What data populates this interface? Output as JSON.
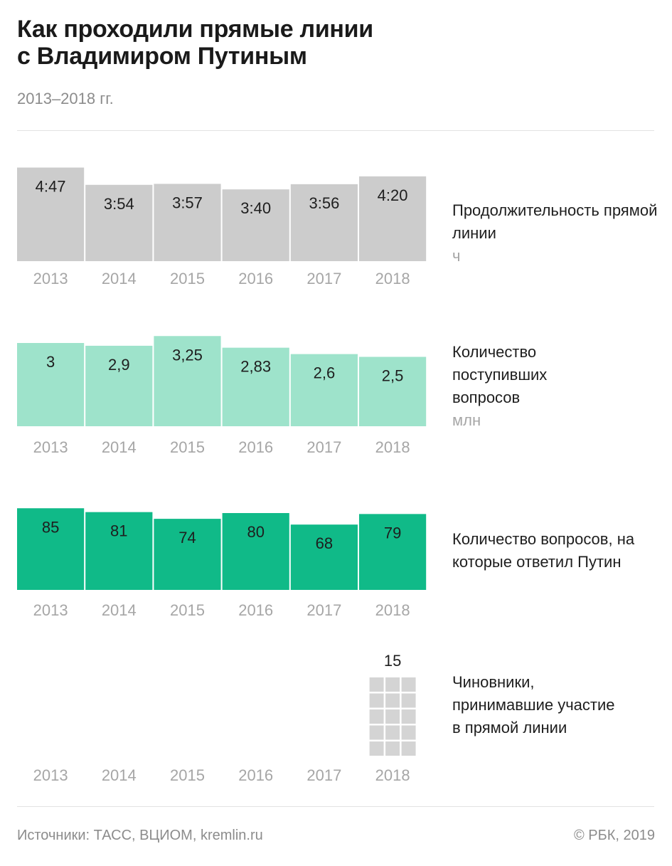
{
  "header": {
    "title_line1": "Как проходили прямые линии",
    "title_line2": "с Владимиром Путиным",
    "subtitle": "2013–2018 гг."
  },
  "footer": {
    "sources": "Источники: ТАСС, ВЦИОМ, kremlin.ru",
    "copyright": "© РБК, 2019"
  },
  "chart_data": [
    {
      "type": "bar",
      "title": "Продолжительность прямой линии",
      "unit": "ч",
      "color": "#cccccc",
      "categories": [
        "2013",
        "2014",
        "2015",
        "2016",
        "2017",
        "2018"
      ],
      "labels": [
        "4:47",
        "3:54",
        "3:57",
        "3:40",
        "3:56",
        "4:20"
      ],
      "values": [
        4.783,
        3.9,
        3.95,
        3.667,
        3.933,
        4.333
      ]
    },
    {
      "type": "bar",
      "title": "Количество поступивших вопросов",
      "unit": "млн",
      "color": "#9ee3cb",
      "categories": [
        "2013",
        "2014",
        "2015",
        "2016",
        "2017",
        "2018"
      ],
      "labels": [
        "3",
        "2,9",
        "3,25",
        "2,83",
        "2,6",
        "2,5"
      ],
      "values": [
        3,
        2.9,
        3.25,
        2.83,
        2.6,
        2.5
      ]
    },
    {
      "type": "bar",
      "title": "Количество вопросов, на которые ответил Путин",
      "unit": "",
      "color": "#10ba88",
      "categories": [
        "2013",
        "2014",
        "2015",
        "2016",
        "2017",
        "2018"
      ],
      "labels": [
        "85",
        "81",
        "74",
        "80",
        "68",
        "79"
      ],
      "values": [
        85,
        81,
        74,
        80,
        68,
        79
      ]
    },
    {
      "type": "bar",
      "title": "Чиновники, принимавшие участие в прямой линии",
      "unit": "",
      "color": "#d4d4d4",
      "categories": [
        "2013",
        "2014",
        "2015",
        "2016",
        "2017",
        "2018"
      ],
      "labels": [
        "",
        "",
        "",
        "",
        "",
        "15"
      ],
      "values": [
        null,
        null,
        null,
        null,
        null,
        15
      ]
    }
  ]
}
